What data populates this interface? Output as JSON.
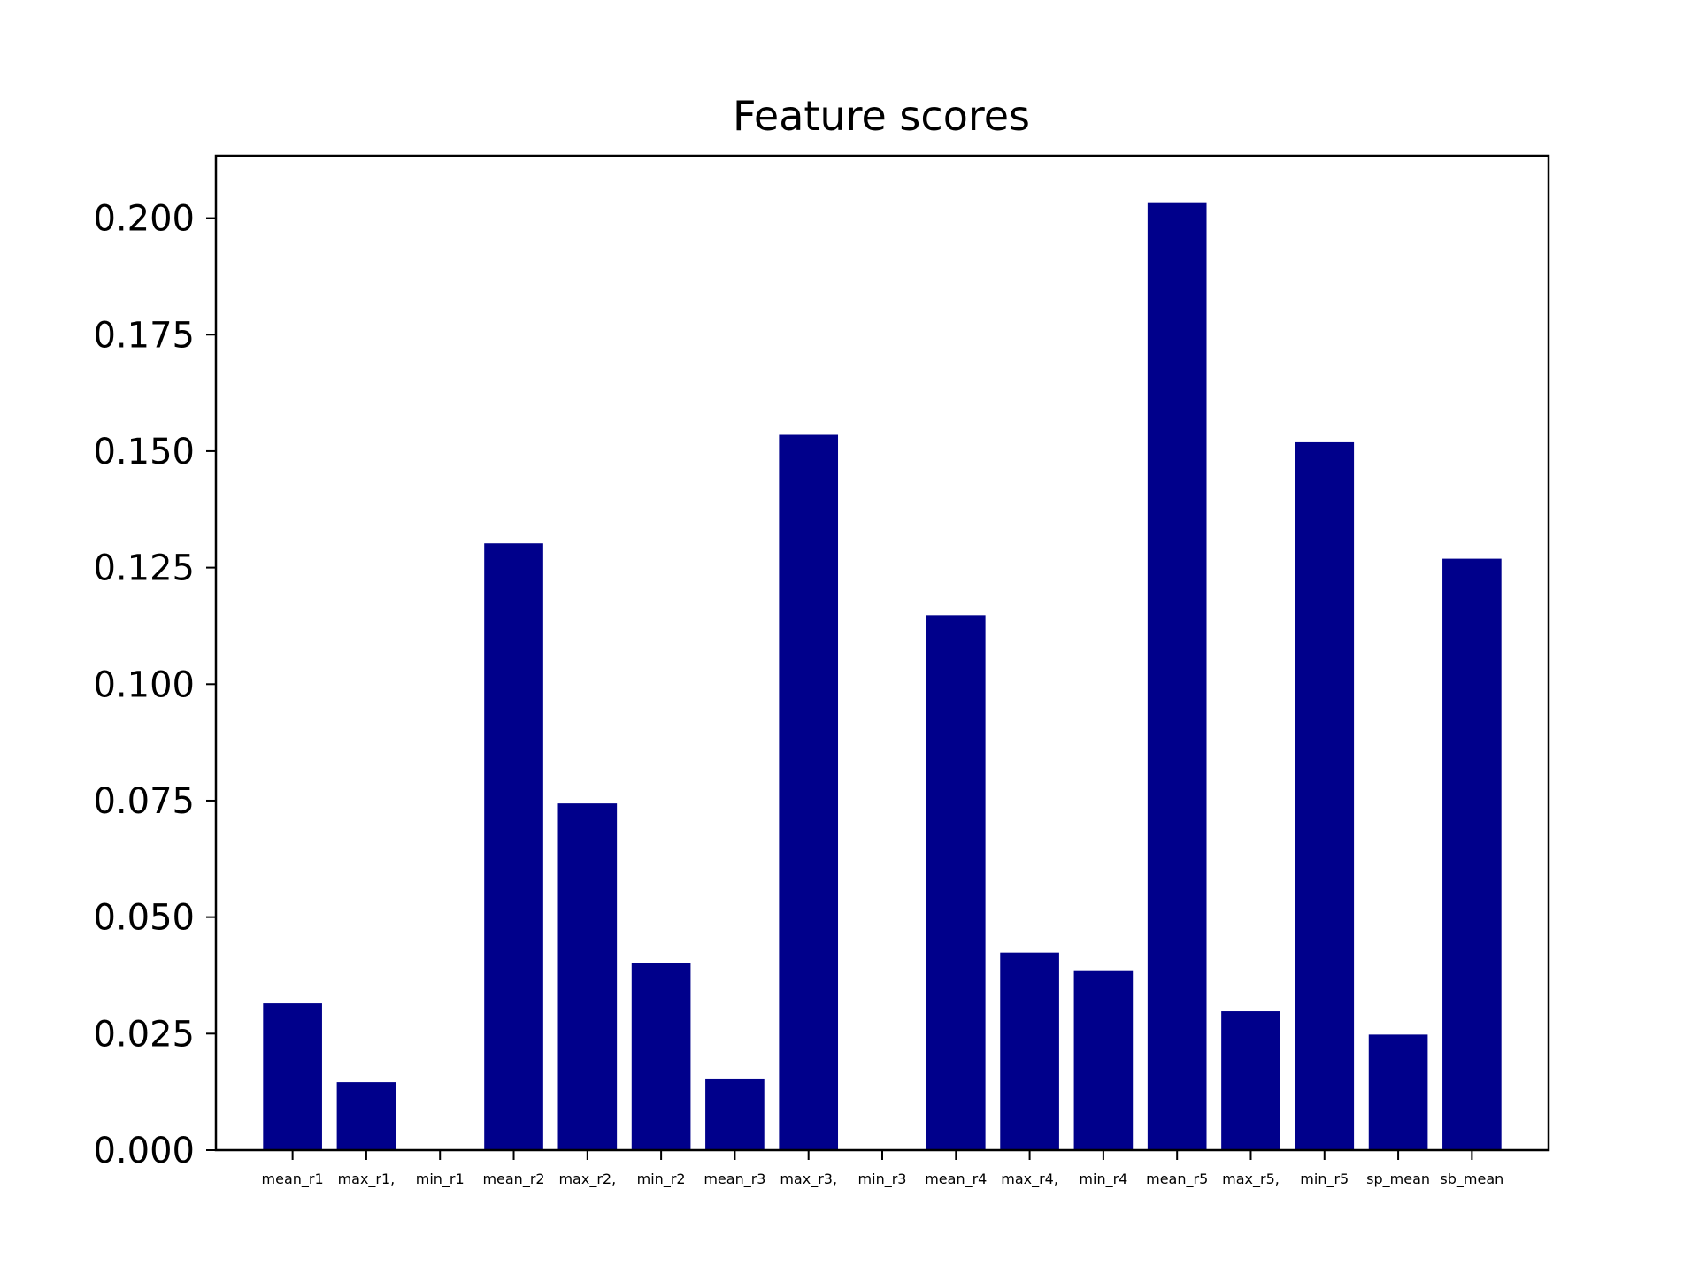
{
  "chart_data": {
    "type": "bar",
    "title": "Feature scores",
    "xlabel": "",
    "ylabel": "",
    "categories": [
      "mean_r1",
      "max_r1,",
      "min_r1",
      "mean_r2",
      "max_r2,",
      "min_r2",
      "mean_r3",
      "max_r3,",
      "min_r3",
      "mean_r4",
      "max_r4,",
      "min_r4",
      "mean_r5",
      "max_r5,",
      "min_r5",
      "sp_mean",
      "sb_mean"
    ],
    "values": [
      0.0315,
      0.0146,
      0.0,
      0.1302,
      0.0744,
      0.0401,
      0.0152,
      0.1535,
      0.0,
      0.1148,
      0.0424,
      0.0386,
      0.2034,
      0.0298,
      0.1519,
      0.0248,
      0.1269
    ],
    "ylim": [
      0,
      0.2134
    ],
    "yticks": [
      "0.000",
      "0.025",
      "0.050",
      "0.075",
      "0.100",
      "0.125",
      "0.150",
      "0.175",
      "0.200"
    ],
    "bar_color": "#00008b",
    "grid": false,
    "legend": "none"
  }
}
